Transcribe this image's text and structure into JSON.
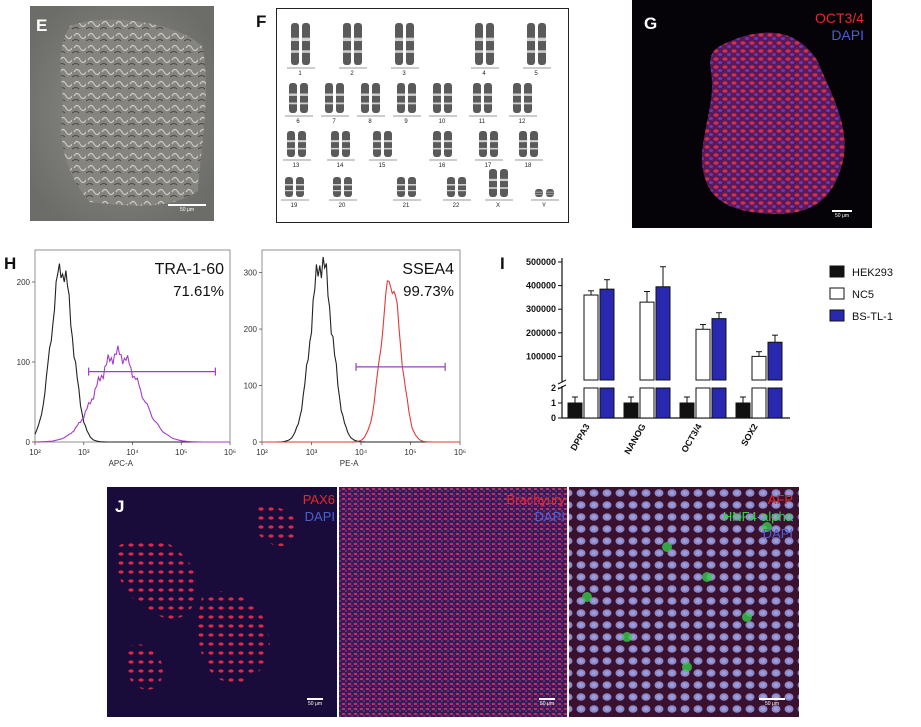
{
  "panels": {
    "E": {
      "label": "E",
      "scale": "50 μm"
    },
    "F": {
      "label": "F",
      "rows": [
        [
          "1",
          "2",
          "3",
          "4",
          "5"
        ],
        [
          "6",
          "7",
          "8",
          "9",
          "10",
          "11",
          "12"
        ],
        [
          "13",
          "14",
          "15",
          "16",
          "17",
          "18"
        ],
        [
          "19",
          "20",
          "21",
          "22",
          "X",
          "Y"
        ]
      ]
    },
    "G": {
      "label": "G",
      "marker1": "OCT3/4",
      "marker2": "DAPI",
      "scale": "50 μm",
      "color1": "#e8262b",
      "color2": "#4a5fd0"
    },
    "H": {
      "label": "H",
      "plots": [
        {
          "marker": "TRA-1-60",
          "percent": "71.61%",
          "xlabel": "APC-A",
          "color": "#a23cc6",
          "yticks": [
            "0",
            "100",
            "200"
          ],
          "xticks": [
            "10²",
            "10³",
            "10⁴",
            "10⁵",
            "10⁶"
          ]
        },
        {
          "marker": "SSEA4",
          "percent": "99.73%",
          "xlabel": "PE-A",
          "color": "#e23a3a",
          "yticks": [
            "0",
            "100",
            "200",
            "300"
          ],
          "xticks": [
            "10²",
            "10³",
            "10⁴",
            "10⁵",
            "10⁶"
          ]
        }
      ]
    },
    "I": {
      "label": "I"
    },
    "J": {
      "label": "J",
      "images": [
        {
          "lines": [
            "PAX6",
            "DAPI"
          ],
          "colors": [
            "#e8262b",
            "#4a5fd0"
          ],
          "scale": "50 μm"
        },
        {
          "lines": [
            "Brachyury",
            "DAPI"
          ],
          "colors": [
            "#e8262b",
            "#4a5fd0"
          ],
          "scale": "50 μm"
        },
        {
          "lines": [
            "AFP",
            "HNF4-alpha",
            "DAPI"
          ],
          "colors": [
            "#e8262b",
            "#36d04a",
            "#4a5fd0"
          ],
          "scale": "50 μm"
        }
      ]
    }
  },
  "chart_data": {
    "type": "bar",
    "categories": [
      "DPPA3",
      "NANOG",
      "OCT3/4",
      "SOX2"
    ],
    "series": [
      {
        "name": "HEK293",
        "values": [
          1,
          1,
          1,
          1
        ],
        "errors": [
          0.4,
          0.4,
          0.4,
          0.4
        ],
        "color": "#111111"
      },
      {
        "name": "NC5",
        "values": [
          360000,
          330000,
          215000,
          100000
        ],
        "errors": [
          18000,
          45000,
          20000,
          20000
        ],
        "color": "#ffffff"
      },
      {
        "name": "BS-TL-1",
        "values": [
          385000,
          395000,
          260000,
          160000
        ],
        "errors": [
          40000,
          85000,
          25000,
          30000
        ],
        "color": "#2828b0"
      }
    ],
    "yticks_upper": [
      "100000",
      "200000",
      "300000",
      "400000",
      "500000"
    ],
    "yticks_lower": [
      "0",
      "1",
      "2"
    ],
    "ylim_upper": [
      0,
      500000
    ],
    "ylim_lower": [
      0,
      2
    ],
    "axis_break": true,
    "legend_position": "right"
  }
}
